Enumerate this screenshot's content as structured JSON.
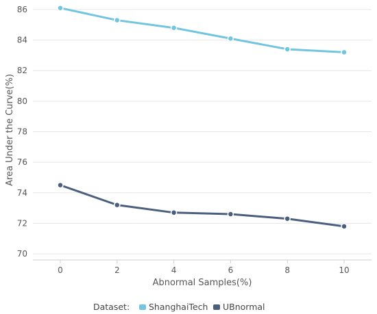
{
  "chart_data": {
    "type": "line",
    "x": [
      0,
      2,
      4,
      6,
      8,
      10
    ],
    "xlabel": "Abnormal Samples(%)",
    "ylabel": "Area Under the Curve(%)",
    "ylim": [
      69.6,
      86.4
    ],
    "yticks": [
      70,
      72,
      74,
      76,
      78,
      80,
      82,
      84,
      86
    ],
    "grid": true,
    "legend": {
      "title": "Dataset:",
      "position": "bottom-center"
    },
    "series": [
      {
        "name": "ShanghaiTech",
        "color": "#72C5DF",
        "values": [
          86.1,
          85.3,
          84.8,
          84.1,
          83.4,
          83.2
        ]
      },
      {
        "name": "UBnormal",
        "color": "#4B5E7E",
        "values": [
          74.5,
          73.2,
          72.7,
          72.6,
          72.3,
          71.8
        ]
      }
    ]
  }
}
